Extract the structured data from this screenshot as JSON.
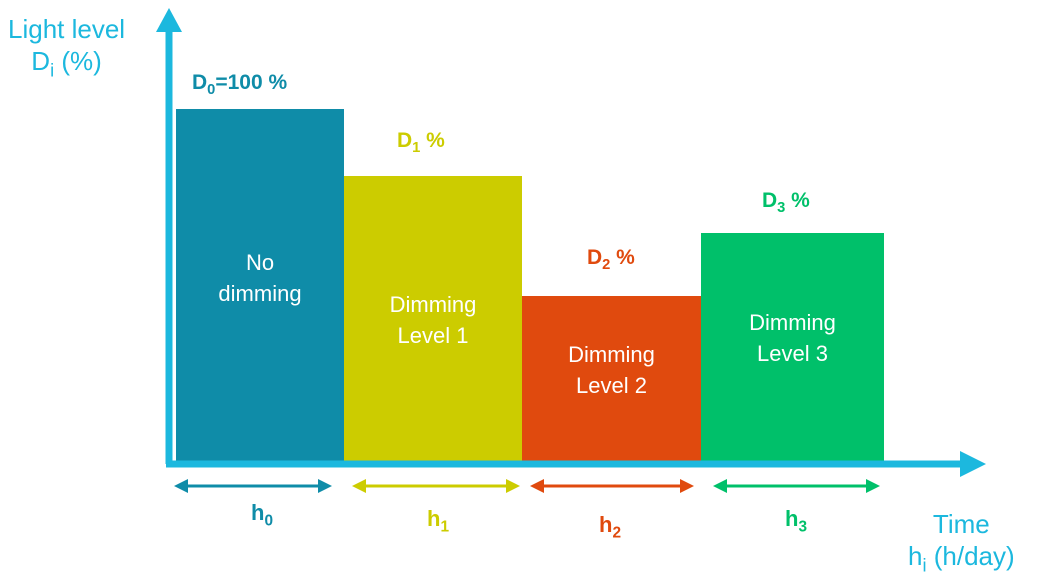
{
  "colors": {
    "axis": "#1cb8de",
    "no_dimming": "#0f8ca8",
    "level1": "#cccc00",
    "level2": "#e04a0e",
    "level3": "#00c06a"
  },
  "y_axis": {
    "title_line1": "Light level",
    "title_main": "D",
    "title_sub": "i",
    "title_rest": " (%)"
  },
  "x_axis": {
    "title_line1": "Time",
    "title_main": "h",
    "title_sub": "i",
    "title_rest": " (h/day)"
  },
  "blocks": [
    {
      "name": "no-dimming",
      "top_main": "D",
      "top_sub": "0",
      "top_rest": "=100 %",
      "label_line1": "No",
      "label_line2": "dimming",
      "h_main": "h",
      "h_sub": "0",
      "color": "#0f8ca8",
      "level": 1.0
    },
    {
      "name": "dimming-level-1",
      "top_main": "D",
      "top_sub": "1",
      "top_rest": " %",
      "label_line1": "Dimming",
      "label_line2": "Level 1",
      "h_main": "h",
      "h_sub": "1",
      "color": "#cccc00",
      "level": 0.81
    },
    {
      "name": "dimming-level-2",
      "top_main": "D",
      "top_sub": "2",
      "top_rest": " %",
      "label_line1": "Dimming",
      "label_line2": "Level 2",
      "h_main": "h",
      "h_sub": "2",
      "color": "#e04a0e",
      "level": 0.47
    },
    {
      "name": "dimming-level-3",
      "top_main": "D",
      "top_sub": "3",
      "top_rest": " %",
      "label_line1": "Dimming",
      "label_line2": "Level 3",
      "h_main": "h",
      "h_sub": "3",
      "color": "#00c06a",
      "level": 0.65
    }
  ]
}
